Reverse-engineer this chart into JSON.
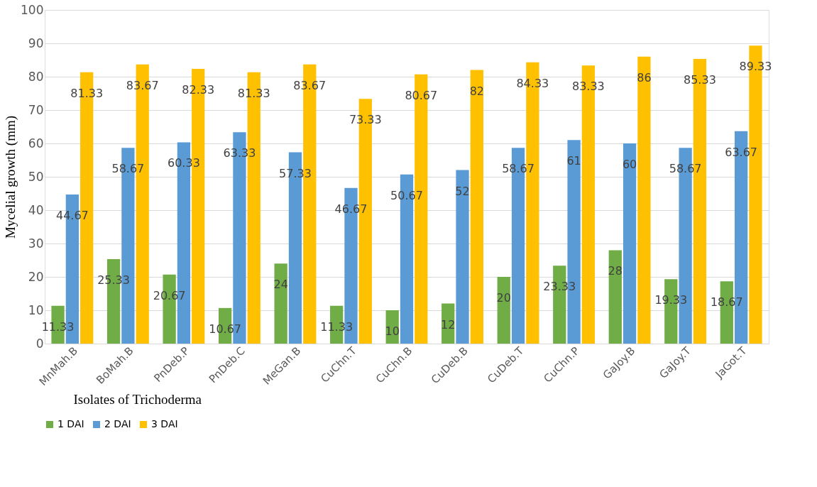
{
  "chart_data": {
    "type": "bar",
    "xlabel": "Isolates of Trichoderma",
    "ylabel": "Mycelial growth (mm)",
    "categories": [
      "MnMah.B",
      "BoMah.B",
      "PnDeb.P",
      "PnDeb.C",
      "MeGan.B",
      "CuChn.T",
      "CuChn.B",
      "CuDeb.B",
      "CuDeb.T",
      "CuChn.P",
      "GaJoy.B",
      "GaJoy.T",
      "JaGot.T"
    ],
    "series": [
      {
        "name": "1 DAI",
        "color": "#70ad47",
        "values": [
          11.33,
          25.33,
          20.67,
          10.67,
          24,
          11.33,
          10,
          12,
          20,
          23.33,
          28,
          19.33,
          18.67
        ]
      },
      {
        "name": "2 DAI",
        "color": "#5b9bd5",
        "values": [
          44.67,
          58.67,
          60.33,
          63.33,
          57.33,
          46.67,
          50.67,
          52,
          58.67,
          61,
          60,
          58.67,
          63.67
        ]
      },
      {
        "name": "3 DAI",
        "color": "#ffc000",
        "values": [
          81.33,
          83.67,
          82.33,
          81.33,
          83.67,
          73.33,
          80.67,
          82,
          84.33,
          83.33,
          86,
          85.33,
          89.33
        ]
      }
    ],
    "ylim": [
      0,
      100
    ],
    "yticks": [
      0,
      10,
      20,
      30,
      40,
      50,
      60,
      70,
      80,
      90,
      100
    ],
    "grid": "y",
    "legend": "bottom",
    "data_labels": true
  }
}
